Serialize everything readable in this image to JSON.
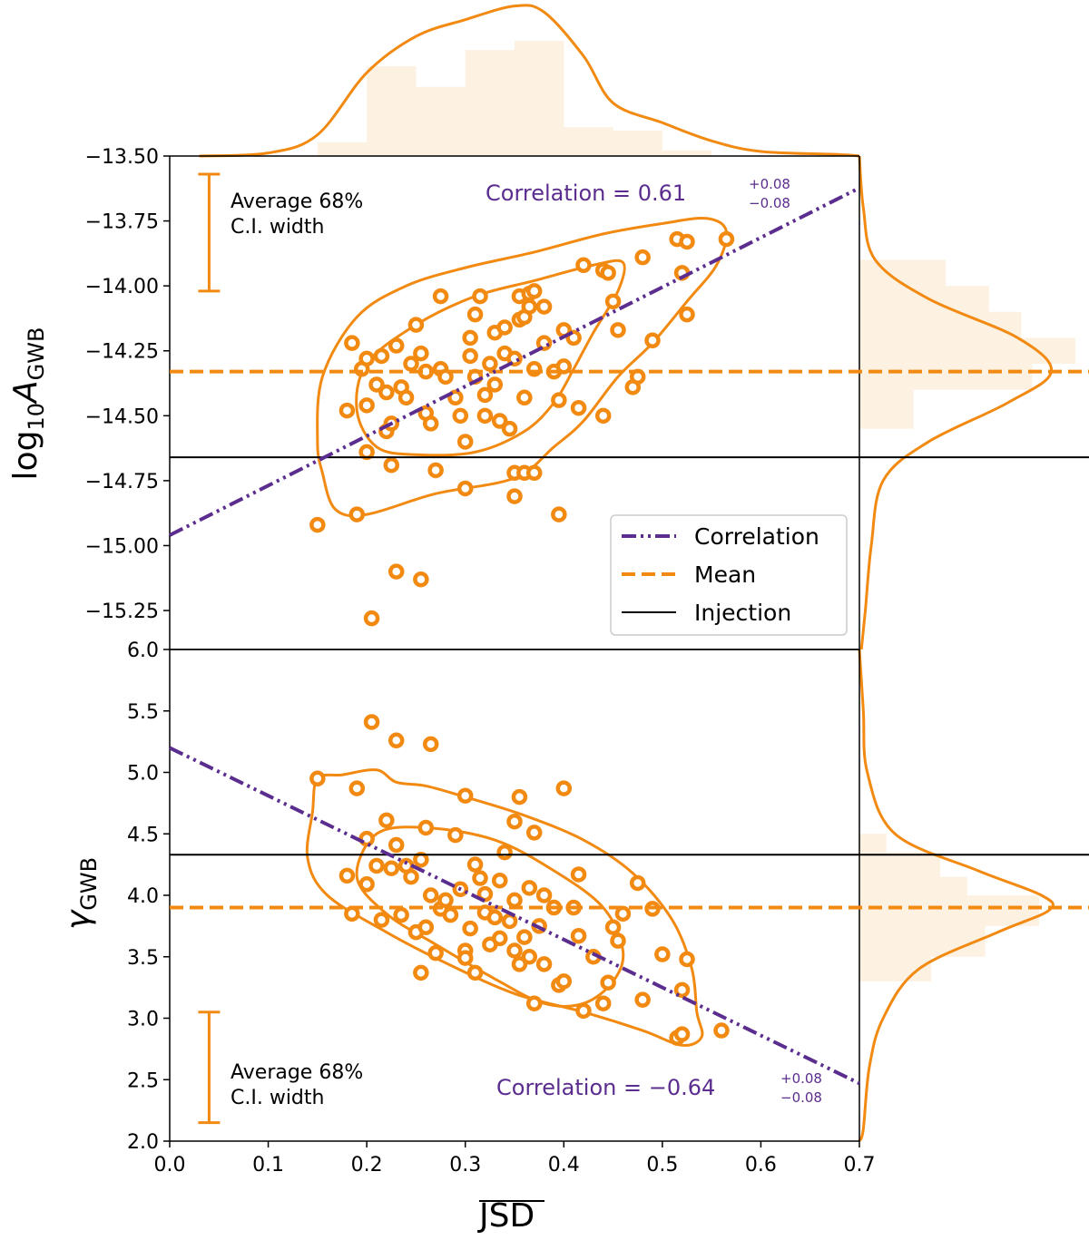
{
  "colors": {
    "orange": "#f28a12",
    "orange_fill": "#fdf1e2",
    "purple": "#5b2d8e",
    "black": "#000000"
  },
  "chart_data": [
    {
      "type": "scatter",
      "panel": "top",
      "xlabel": "JSD",
      "ylabel_base": "log",
      "ylabel_sub": "10",
      "ylabel_var": "A",
      "ylabel_var_sub": "GWB",
      "xlim": [
        0.0,
        0.7
      ],
      "ylim": [
        -15.4,
        -13.5
      ],
      "yticks": [
        "−13.50",
        "−13.75",
        "−14.00",
        "−14.25",
        "−14.50",
        "−14.75",
        "−15.00",
        "−15.25"
      ],
      "ytick_values": [
        -13.5,
        -13.75,
        -14.0,
        -14.25,
        -14.5,
        -14.75,
        -15.0,
        -15.25
      ],
      "mean": -14.33,
      "injection": -14.66,
      "correlation_line": {
        "intercept": -14.96,
        "slope": 1.91
      },
      "correlation_text": "Correlation = 0.61",
      "correlation_sup": "+0.08",
      "correlation_sub": "−0.08",
      "ci_label_line1": "Average 68%",
      "ci_label_line2": "C.I. width",
      "ci_bar": {
        "x": 0.04,
        "y_low": -14.02,
        "y_high": -13.57
      },
      "points": [
        [
          0.15,
          -14.92
        ],
        [
          0.18,
          -14.48
        ],
        [
          0.185,
          -14.22
        ],
        [
          0.19,
          -14.88
        ],
        [
          0.195,
          -14.32
        ],
        [
          0.2,
          -14.28
        ],
        [
          0.2,
          -14.46
        ],
        [
          0.2,
          -14.64
        ],
        [
          0.21,
          -14.38
        ],
        [
          0.215,
          -14.27
        ],
        [
          0.22,
          -14.41
        ],
        [
          0.22,
          -14.56
        ],
        [
          0.225,
          -14.53
        ],
        [
          0.225,
          -14.69
        ],
        [
          0.23,
          -14.23
        ],
        [
          0.235,
          -14.39
        ],
        [
          0.24,
          -14.43
        ],
        [
          0.245,
          -14.3
        ],
        [
          0.25,
          -14.15
        ],
        [
          0.255,
          -14.26
        ],
        [
          0.26,
          -14.49
        ],
        [
          0.26,
          -14.33
        ],
        [
          0.265,
          -14.53
        ],
        [
          0.27,
          -14.71
        ],
        [
          0.275,
          -14.04
        ],
        [
          0.275,
          -14.32
        ],
        [
          0.28,
          -14.35
        ],
        [
          0.29,
          -14.43
        ],
        [
          0.3,
          -14.6
        ],
        [
          0.3,
          -14.78
        ],
        [
          0.305,
          -14.2
        ],
        [
          0.305,
          -14.27
        ],
        [
          0.31,
          -14.11
        ],
        [
          0.31,
          -14.35
        ],
        [
          0.315,
          -14.04
        ],
        [
          0.32,
          -14.5
        ],
        [
          0.32,
          -14.42
        ],
        [
          0.325,
          -14.3
        ],
        [
          0.33,
          -14.18
        ],
        [
          0.33,
          -14.38
        ],
        [
          0.335,
          -14.52
        ],
        [
          0.34,
          -14.16
        ],
        [
          0.34,
          -14.26
        ],
        [
          0.345,
          -14.55
        ],
        [
          0.35,
          -14.72
        ],
        [
          0.35,
          -14.28
        ],
        [
          0.355,
          -14.04
        ],
        [
          0.355,
          -14.13
        ],
        [
          0.36,
          -14.12
        ],
        [
          0.36,
          -14.43
        ],
        [
          0.365,
          -14.03
        ],
        [
          0.365,
          -14.08
        ],
        [
          0.37,
          -14.32
        ],
        [
          0.37,
          -14.02
        ],
        [
          0.38,
          -14.08
        ],
        [
          0.38,
          -14.22
        ],
        [
          0.39,
          -14.33
        ],
        [
          0.395,
          -14.44
        ],
        [
          0.4,
          -14.17
        ],
        [
          0.4,
          -14.31
        ],
        [
          0.41,
          -14.2
        ],
        [
          0.415,
          -14.47
        ],
        [
          0.42,
          -13.92
        ],
        [
          0.44,
          -13.94
        ],
        [
          0.445,
          -13.95
        ],
        [
          0.45,
          -14.06
        ],
        [
          0.455,
          -14.17
        ],
        [
          0.47,
          -14.39
        ],
        [
          0.475,
          -14.35
        ],
        [
          0.48,
          -13.89
        ],
        [
          0.49,
          -14.21
        ],
        [
          0.515,
          -13.82
        ],
        [
          0.52,
          -13.95
        ],
        [
          0.525,
          -13.83
        ],
        [
          0.525,
          -14.11
        ],
        [
          0.565,
          -13.82
        ],
        [
          0.35,
          -14.81
        ],
        [
          0.36,
          -14.72
        ],
        [
          0.395,
          -14.88
        ],
        [
          0.23,
          -15.1
        ],
        [
          0.255,
          -15.13
        ],
        [
          0.205,
          -15.28
        ],
        [
          0.37,
          -14.72
        ],
        [
          0.44,
          -14.5
        ],
        [
          0.295,
          -14.5
        ]
      ],
      "contour_outer": [
        [
          0.15,
          -14.6
        ],
        [
          0.155,
          -14.35
        ],
        [
          0.19,
          -14.12
        ],
        [
          0.24,
          -14.0
        ],
        [
          0.3,
          -13.93
        ],
        [
          0.37,
          -13.87
        ],
        [
          0.44,
          -13.8
        ],
        [
          0.5,
          -13.76
        ],
        [
          0.545,
          -13.74
        ],
        [
          0.565,
          -13.79
        ],
        [
          0.555,
          -13.92
        ],
        [
          0.525,
          -14.06
        ],
        [
          0.49,
          -14.22
        ],
        [
          0.455,
          -14.35
        ],
        [
          0.42,
          -14.52
        ],
        [
          0.39,
          -14.62
        ],
        [
          0.35,
          -14.74
        ],
        [
          0.27,
          -14.8
        ],
        [
          0.2,
          -14.88
        ],
        [
          0.168,
          -14.86
        ],
        [
          0.155,
          -14.72
        ],
        [
          0.15,
          -14.6
        ]
      ],
      "contour_inner": [
        [
          0.19,
          -14.48
        ],
        [
          0.2,
          -14.3
        ],
        [
          0.25,
          -14.15
        ],
        [
          0.31,
          -14.04
        ],
        [
          0.37,
          -13.98
        ],
        [
          0.43,
          -13.92
        ],
        [
          0.46,
          -13.91
        ],
        [
          0.455,
          -14.02
        ],
        [
          0.43,
          -14.18
        ],
        [
          0.41,
          -14.32
        ],
        [
          0.39,
          -14.45
        ],
        [
          0.36,
          -14.56
        ],
        [
          0.31,
          -14.64
        ],
        [
          0.25,
          -14.65
        ],
        [
          0.21,
          -14.62
        ],
        [
          0.19,
          -14.48
        ]
      ]
    },
    {
      "type": "scatter",
      "panel": "bottom",
      "xlabel": "JSD",
      "ylabel_var": "γ",
      "ylabel_var_sub": "GWB",
      "xlim": [
        0.0,
        0.7
      ],
      "ylim": [
        2.0,
        6.0
      ],
      "yticks": [
        "2.0",
        "2.5",
        "3.0",
        "3.5",
        "4.0",
        "4.5",
        "5.0",
        "5.5",
        "6.0"
      ],
      "ytick_values": [
        2.0,
        2.5,
        3.0,
        3.5,
        4.0,
        4.5,
        5.0,
        5.5,
        6.0
      ],
      "xticks": [
        "0.0",
        "0.1",
        "0.2",
        "0.3",
        "0.4",
        "0.5",
        "0.6",
        "0.7"
      ],
      "xtick_values": [
        0.0,
        0.1,
        0.2,
        0.3,
        0.4,
        0.5,
        0.6,
        0.7
      ],
      "mean": 3.9,
      "injection": 4.33,
      "correlation_line": {
        "intercept": 5.2,
        "slope": -3.9
      },
      "correlation_text": "Correlation = −0.64",
      "correlation_sup": "+0.08",
      "correlation_sub": "−0.08",
      "ci_label_line1": "Average 68%",
      "ci_label_line2": "C.I. width",
      "ci_bar": {
        "x": 0.04,
        "y_low": 2.15,
        "y_high": 3.05
      },
      "points": [
        [
          0.15,
          4.95
        ],
        [
          0.18,
          4.16
        ],
        [
          0.185,
          3.85
        ],
        [
          0.19,
          4.87
        ],
        [
          0.2,
          4.09
        ],
        [
          0.2,
          4.46
        ],
        [
          0.205,
          5.41
        ],
        [
          0.21,
          4.24
        ],
        [
          0.215,
          3.8
        ],
        [
          0.22,
          4.61
        ],
        [
          0.225,
          4.22
        ],
        [
          0.23,
          4.41
        ],
        [
          0.23,
          5.26
        ],
        [
          0.235,
          3.84
        ],
        [
          0.24,
          4.24
        ],
        [
          0.245,
          4.15
        ],
        [
          0.25,
          3.7
        ],
        [
          0.255,
          4.29
        ],
        [
          0.255,
          3.37
        ],
        [
          0.26,
          3.74
        ],
        [
          0.26,
          4.55
        ],
        [
          0.265,
          4.0
        ],
        [
          0.265,
          5.23
        ],
        [
          0.27,
          3.53
        ],
        [
          0.275,
          3.89
        ],
        [
          0.28,
          3.96
        ],
        [
          0.285,
          3.84
        ],
        [
          0.29,
          4.49
        ],
        [
          0.295,
          4.05
        ],
        [
          0.3,
          4.81
        ],
        [
          0.3,
          3.55
        ],
        [
          0.3,
          3.49
        ],
        [
          0.305,
          3.73
        ],
        [
          0.31,
          4.25
        ],
        [
          0.31,
          3.37
        ],
        [
          0.315,
          4.14
        ],
        [
          0.32,
          4.01
        ],
        [
          0.32,
          3.86
        ],
        [
          0.325,
          3.6
        ],
        [
          0.33,
          3.82
        ],
        [
          0.335,
          3.65
        ],
        [
          0.335,
          4.12
        ],
        [
          0.34,
          4.35
        ],
        [
          0.345,
          3.79
        ],
        [
          0.35,
          4.6
        ],
        [
          0.35,
          3.55
        ],
        [
          0.355,
          3.44
        ],
        [
          0.355,
          4.8
        ],
        [
          0.36,
          3.66
        ],
        [
          0.365,
          3.5
        ],
        [
          0.365,
          4.06
        ],
        [
          0.37,
          4.51
        ],
        [
          0.37,
          3.12
        ],
        [
          0.375,
          3.75
        ],
        [
          0.38,
          3.44
        ],
        [
          0.39,
          3.9
        ],
        [
          0.395,
          3.27
        ],
        [
          0.4,
          4.87
        ],
        [
          0.4,
          3.3
        ],
        [
          0.41,
          3.9
        ],
        [
          0.415,
          3.67
        ],
        [
          0.415,
          4.17
        ],
        [
          0.42,
          3.06
        ],
        [
          0.43,
          3.5
        ],
        [
          0.44,
          3.12
        ],
        [
          0.445,
          3.29
        ],
        [
          0.45,
          3.74
        ],
        [
          0.455,
          3.63
        ],
        [
          0.46,
          3.85
        ],
        [
          0.475,
          4.1
        ],
        [
          0.48,
          3.15
        ],
        [
          0.49,
          3.89
        ],
        [
          0.5,
          3.52
        ],
        [
          0.515,
          2.84
        ],
        [
          0.52,
          3.23
        ],
        [
          0.52,
          2.87
        ],
        [
          0.525,
          3.48
        ],
        [
          0.56,
          2.9
        ],
        [
          0.35,
          3.96
        ],
        [
          0.38,
          4.0
        ]
      ],
      "contour_outer": [
        [
          0.14,
          4.3
        ],
        [
          0.145,
          4.68
        ],
        [
          0.15,
          4.95
        ],
        [
          0.175,
          4.98
        ],
        [
          0.21,
          5.02
        ],
        [
          0.23,
          4.92
        ],
        [
          0.26,
          4.89
        ],
        [
          0.3,
          4.8
        ],
        [
          0.36,
          4.65
        ],
        [
          0.42,
          4.45
        ],
        [
          0.47,
          4.18
        ],
        [
          0.51,
          3.8
        ],
        [
          0.53,
          3.4
        ],
        [
          0.535,
          3.05
        ],
        [
          0.54,
          2.85
        ],
        [
          0.52,
          2.78
        ],
        [
          0.48,
          2.9
        ],
        [
          0.42,
          3.05
        ],
        [
          0.35,
          3.2
        ],
        [
          0.28,
          3.45
        ],
        [
          0.22,
          3.7
        ],
        [
          0.16,
          4.0
        ],
        [
          0.14,
          4.3
        ]
      ],
      "contour_inner": [
        [
          0.19,
          4.15
        ],
        [
          0.21,
          4.5
        ],
        [
          0.26,
          4.55
        ],
        [
          0.33,
          4.45
        ],
        [
          0.39,
          4.2
        ],
        [
          0.44,
          3.9
        ],
        [
          0.46,
          3.55
        ],
        [
          0.45,
          3.3
        ],
        [
          0.42,
          3.12
        ],
        [
          0.38,
          3.12
        ],
        [
          0.33,
          3.32
        ],
        [
          0.27,
          3.6
        ],
        [
          0.22,
          3.85
        ],
        [
          0.19,
          4.15
        ]
      ]
    }
  ],
  "legend": {
    "correlation": "Correlation",
    "mean": "Mean",
    "injection": "Injection"
  },
  "marginals": {
    "x_hist": {
      "edges": [
        0.15,
        0.2,
        0.25,
        0.3,
        0.35,
        0.4,
        0.45,
        0.5,
        0.55
      ],
      "heights": [
        0.12,
        0.78,
        0.6,
        0.92,
        1.0,
        0.25,
        0.22,
        0.05
      ]
    },
    "x_kde": [
      [
        0.03,
        0.0
      ],
      [
        0.1,
        0.02
      ],
      [
        0.15,
        0.14
      ],
      [
        0.2,
        0.55
      ],
      [
        0.25,
        0.79
      ],
      [
        0.3,
        0.9
      ],
      [
        0.35,
        0.99
      ],
      [
        0.38,
        0.95
      ],
      [
        0.42,
        0.66
      ],
      [
        0.45,
        0.35
      ],
      [
        0.5,
        0.22
      ],
      [
        0.55,
        0.1
      ],
      [
        0.6,
        0.03
      ],
      [
        0.68,
        0.01
      ],
      [
        0.7,
        0.0
      ]
    ],
    "y_hist_top": {
      "edges": [
        -13.9,
        -14.0,
        -14.1,
        -14.2,
        -14.3,
        -14.4,
        -14.55
      ],
      "widths": [
        0.4,
        0.6,
        0.75,
        1.0,
        0.8,
        0.25
      ]
    },
    "y_kde_top": [
      [
        -13.5,
        0.0
      ],
      [
        -13.7,
        0.02
      ],
      [
        -13.9,
        0.08
      ],
      [
        -14.05,
        0.35
      ],
      [
        -14.2,
        0.8
      ],
      [
        -14.33,
        0.97
      ],
      [
        -14.45,
        0.75
      ],
      [
        -14.6,
        0.35
      ],
      [
        -14.75,
        0.12
      ],
      [
        -15.0,
        0.06
      ],
      [
        -15.25,
        0.03
      ],
      [
        -15.4,
        0.01
      ]
    ],
    "y_hist_bottom": {
      "edges": [
        4.5,
        4.35,
        4.15,
        4.0,
        3.75,
        3.5,
        3.3
      ],
      "widths": [
        0.15,
        0.45,
        0.6,
        1.0,
        0.7,
        0.4
      ]
    },
    "y_kde_bottom": [
      [
        6.0,
        0.0
      ],
      [
        5.5,
        0.02
      ],
      [
        5.0,
        0.04
      ],
      [
        4.5,
        0.18
      ],
      [
        4.2,
        0.6
      ],
      [
        4.0,
        0.92
      ],
      [
        3.88,
        0.96
      ],
      [
        3.7,
        0.7
      ],
      [
        3.4,
        0.3
      ],
      [
        3.0,
        0.12
      ],
      [
        2.6,
        0.05
      ],
      [
        2.1,
        0.02
      ],
      [
        2.0,
        0.0
      ]
    ]
  }
}
